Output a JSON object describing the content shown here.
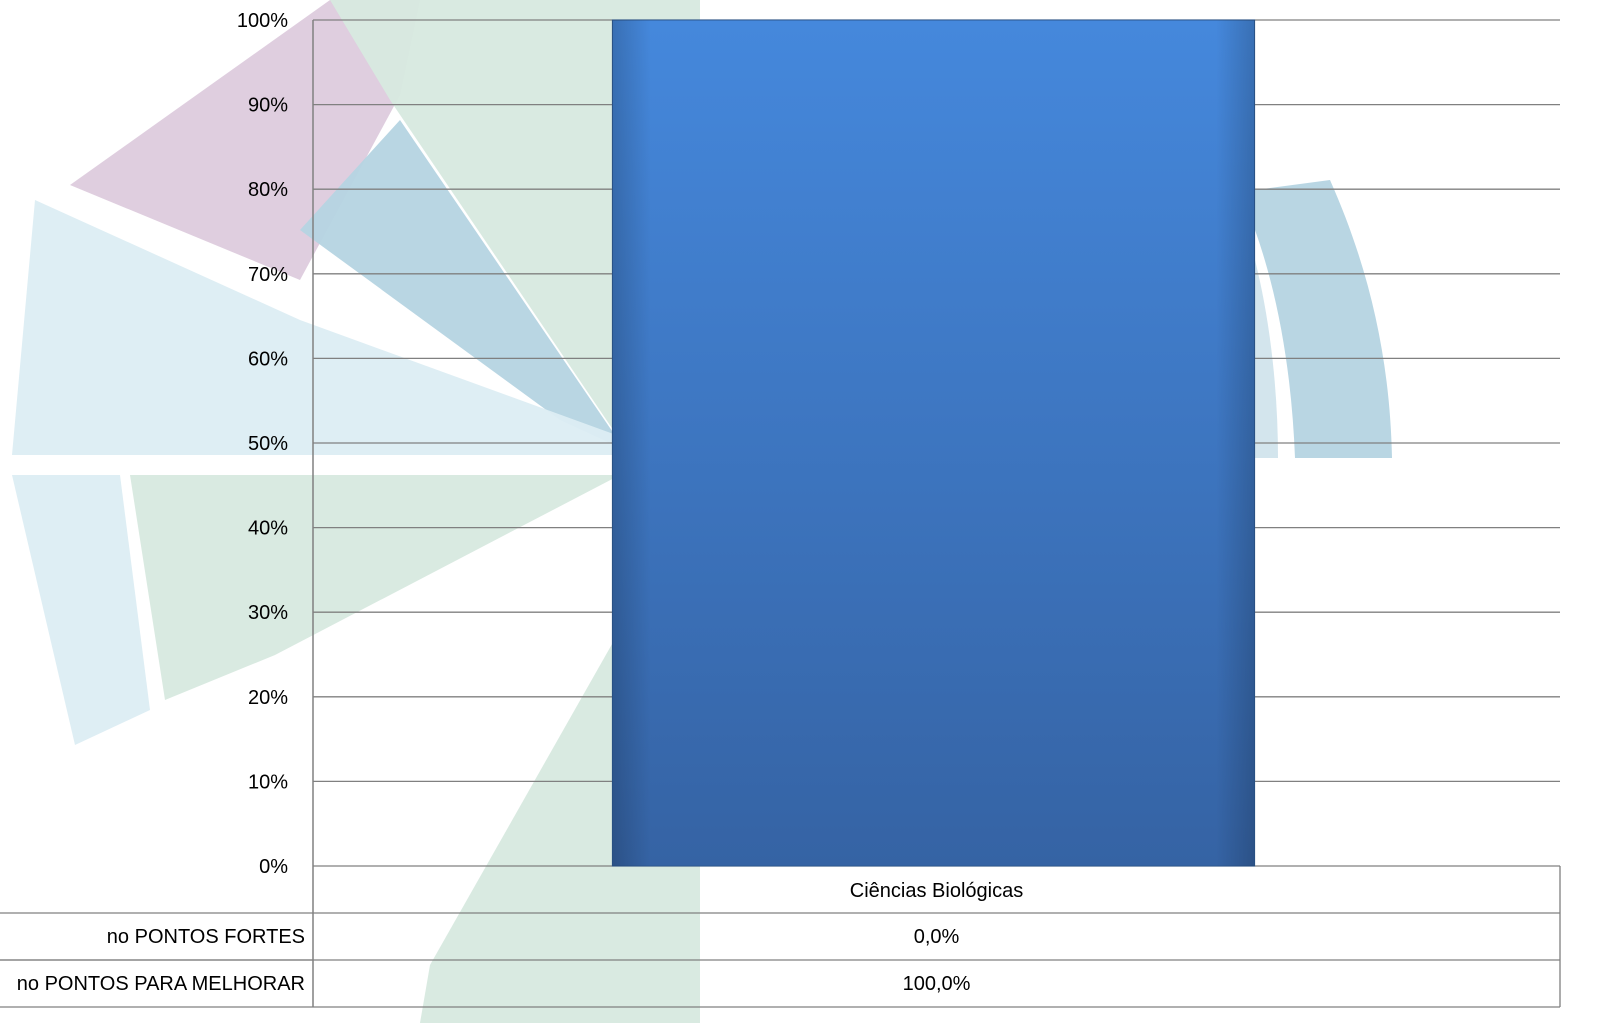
{
  "chart_data": {
    "type": "bar",
    "categories": [
      "Ciências Biológicas"
    ],
    "series": [
      {
        "values": [
          0.0
        ]
      },
      {
        "values": [
          100.0
        ]
      }
    ],
    "stacked": true,
    "ylim": [
      0,
      100
    ],
    "y_ticks": [
      "0%",
      "10%",
      "20%",
      "30%",
      "40%",
      "50%",
      "60%",
      "70%",
      "80%",
      "90%",
      "100%"
    ],
    "grid": true,
    "data_table": {
      "rows": [
        {
          "label": "no PONTOS FORTES",
          "values": [
            "0,0%"
          ]
        },
        {
          "label": "no PONTOS PARA MELHORAR",
          "values": [
            "100,0%"
          ]
        }
      ]
    },
    "colors": {
      "bar_top": "#4588DC",
      "bar_bottom": "#3563A4",
      "gridline": "#808080",
      "watermark_green": "#D7E9DF",
      "watermark_blue": "#B5D4E1",
      "watermark_lightblue": "#DCEDF3",
      "watermark_purple": "#DCC9DC"
    }
  }
}
